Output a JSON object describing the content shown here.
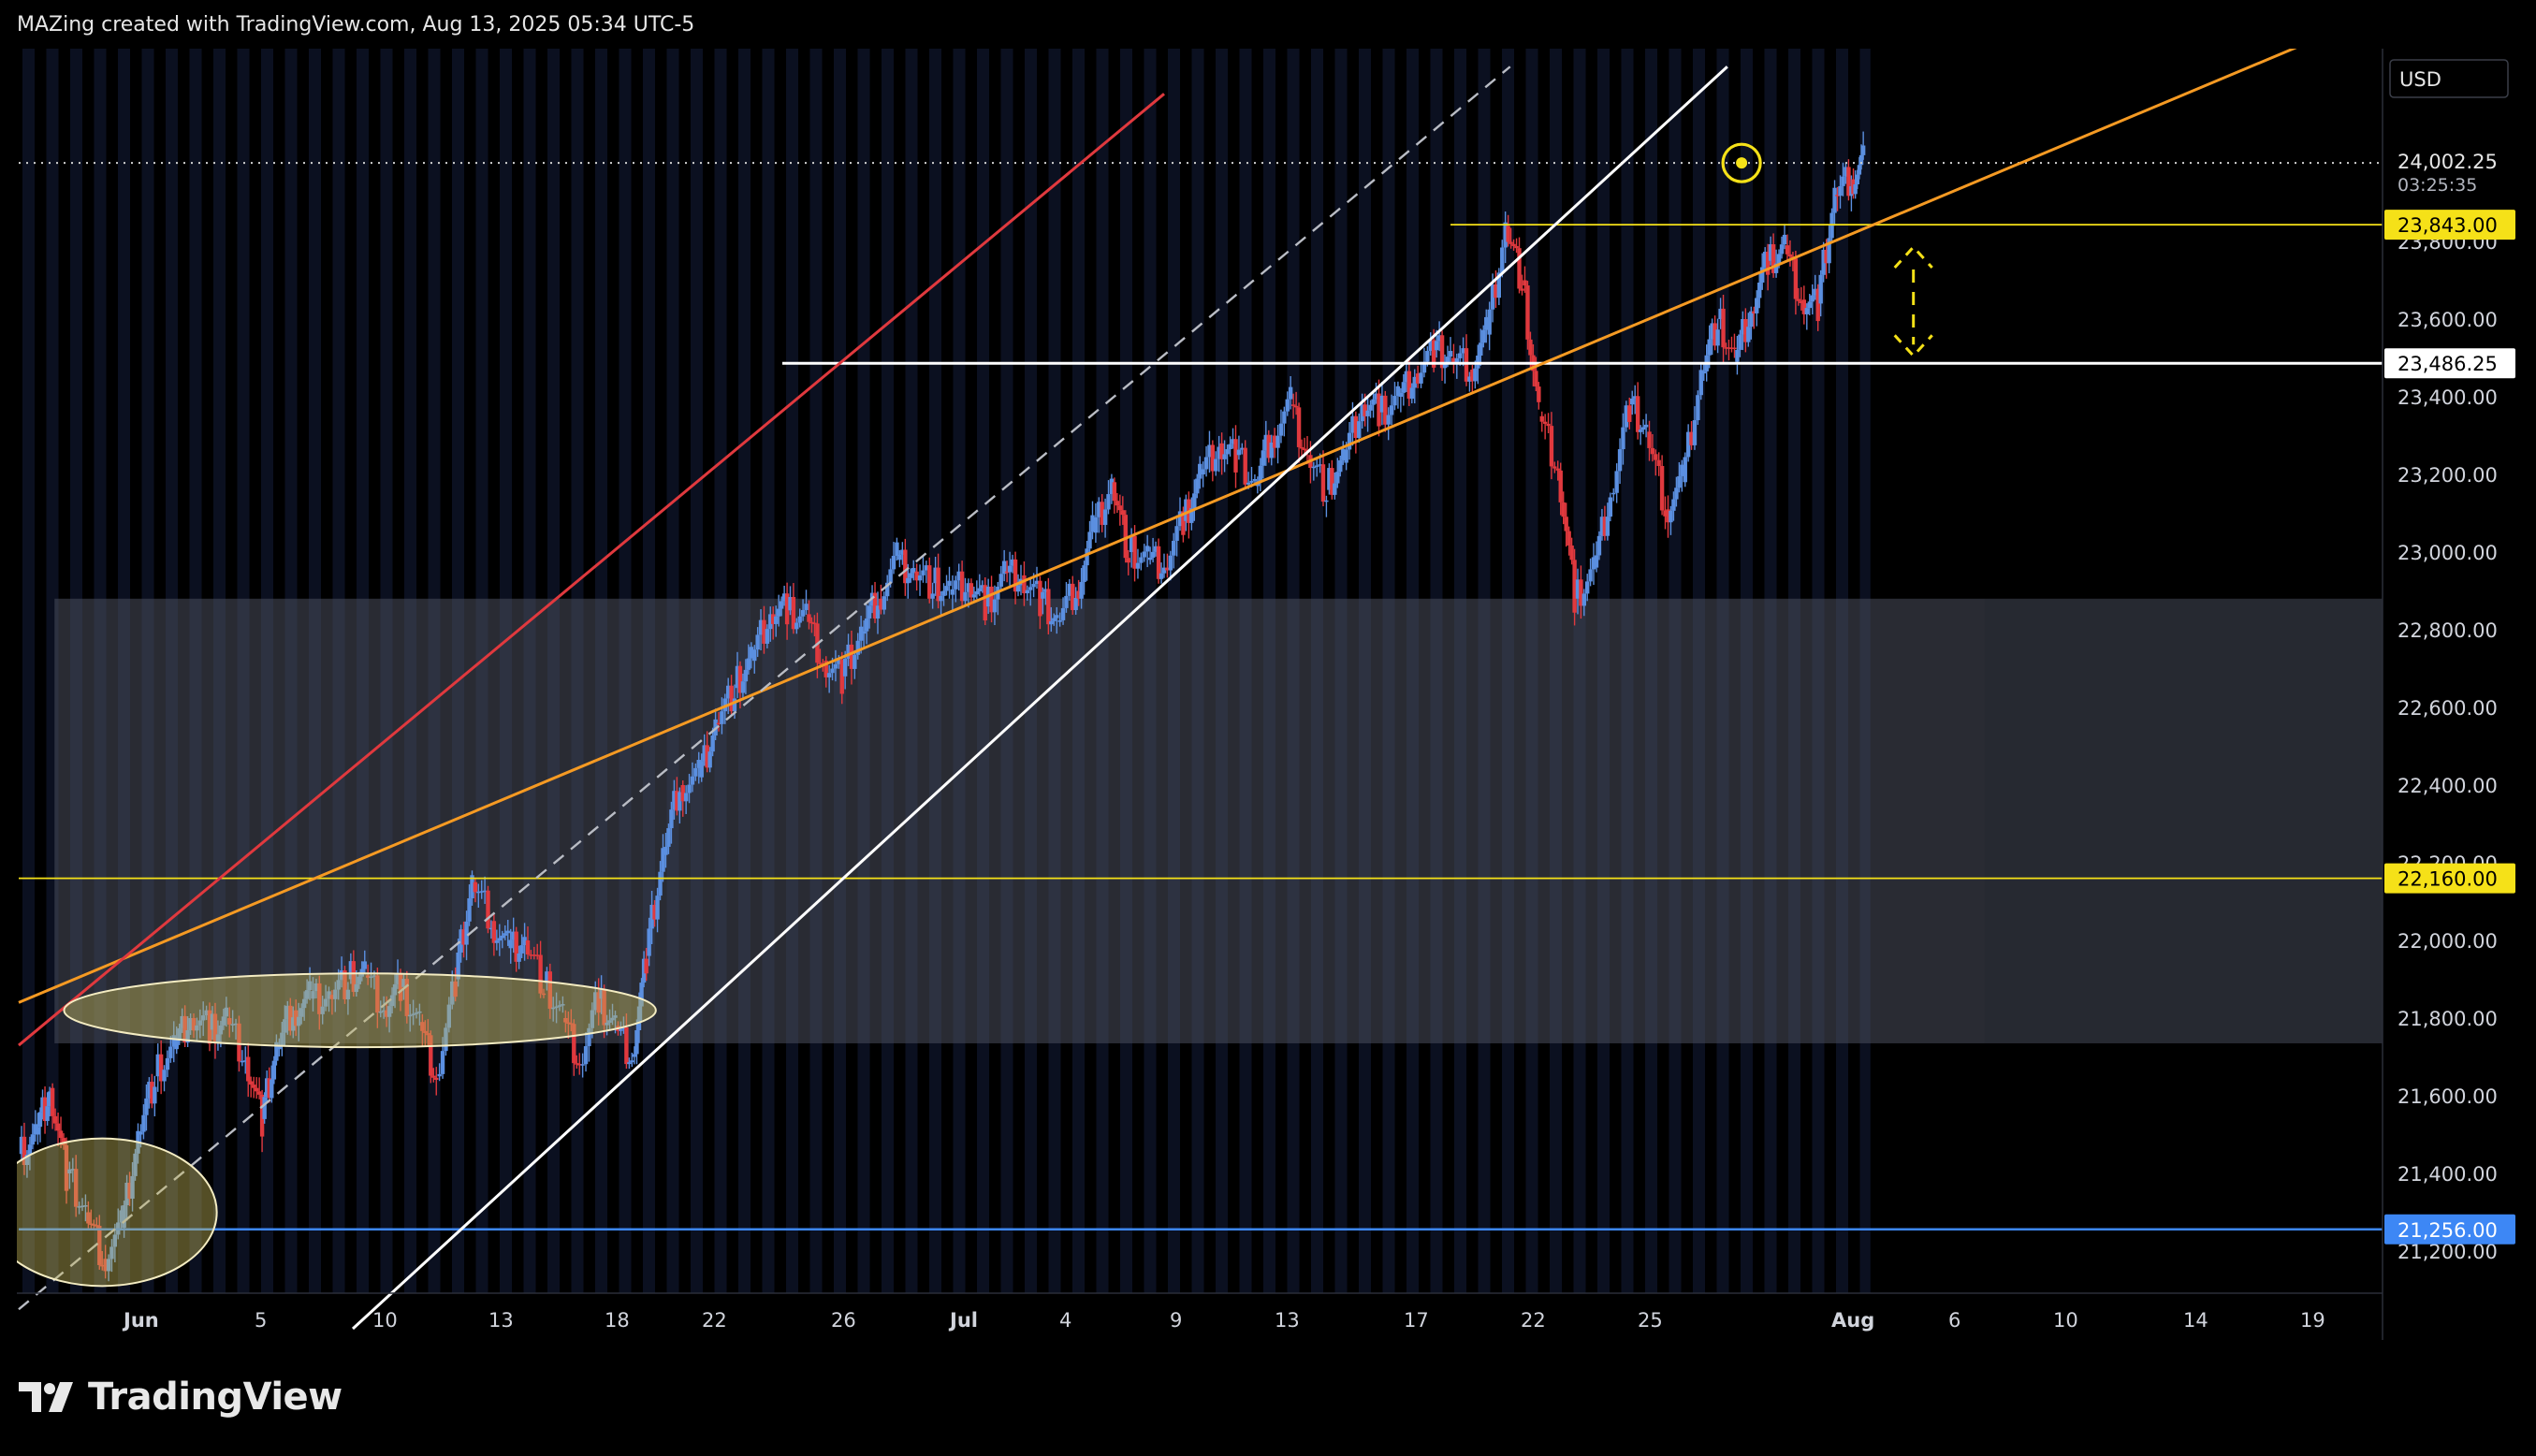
{
  "header": {
    "attribution": "MAZing created with TradingView.com, Aug 13, 2025 05:34 UTC-5"
  },
  "brand": {
    "name": "TradingView",
    "logo_icon": "tradingview-logo-icon"
  },
  "colors": {
    "background": "#000000",
    "up": "#5b8fe0",
    "down": "#e0393e",
    "yellow": "#f5e118",
    "orange": "#f59a23",
    "red_line": "#e0393e",
    "white_line": "#ffffff",
    "blue_line": "#3d87f5",
    "zone": "#4a4f5c"
  },
  "chart_data": {
    "type": "candlestick",
    "symbol_currency": "USD",
    "y_ticks": [
      "21,200.00",
      "21,400.00",
      "21,600.00",
      "21,800.00",
      "22,000.00",
      "22,200.00",
      "22,400.00",
      "22,600.00",
      "22,800.00",
      "23,000.00",
      "23,200.00",
      "23,400.00",
      "23,600.00",
      "23,800.00"
    ],
    "y_tick_values": [
      21200,
      21400,
      21600,
      21800,
      22000,
      22200,
      22400,
      22600,
      22800,
      23000,
      23200,
      23400,
      23600,
      23800
    ],
    "x_ticks": [
      "Jun",
      "5",
      "10",
      "13",
      "18",
      "22",
      "26",
      "Jul",
      "4",
      "9",
      "13",
      "17",
      "22",
      "25",
      "Aug",
      "6",
      "10",
      "14",
      "19"
    ],
    "x_tick_bold": [
      "Jun",
      "Jul",
      "Aug"
    ],
    "ylim": [
      21000,
      24300
    ],
    "price_labels": [
      {
        "text": "24,002.25",
        "subtext": "03:25:35",
        "value": 24002.25,
        "style": "current"
      },
      {
        "text": "23,843.00",
        "value": 23843,
        "style": "yellow"
      },
      {
        "text": "23,486.25",
        "value": 23486.25,
        "style": "white"
      },
      {
        "text": "22,160.00",
        "value": 22160,
        "style": "yellow"
      },
      {
        "text": "21,256.00",
        "value": 21256,
        "style": "blue"
      }
    ],
    "horizontal_levels": [
      {
        "name": "current-price-dotted",
        "value": 24002.25,
        "start_day": 0,
        "end_day": 78,
        "style": "dotted"
      },
      {
        "name": "resistance-23843",
        "value": 23843,
        "start_day": 60,
        "end_day": 78,
        "style": "yellow"
      },
      {
        "name": "support-23486",
        "value": 23486.25,
        "start_day": 32,
        "end_day": 78,
        "style": "white-thick"
      },
      {
        "name": "level-22160",
        "value": 22160,
        "start_day": 0,
        "end_day": 78,
        "style": "yellow"
      },
      {
        "name": "level-21256",
        "value": 21256,
        "start_day": 0,
        "end_day": 78,
        "style": "blue"
      }
    ],
    "trend_lines": [
      {
        "name": "orange-trendline",
        "p1": [
          0,
          21840
        ],
        "p2": [
          78,
          23850
        ],
        "color": "orange"
      },
      {
        "name": "red-trendline",
        "p1": [
          0,
          21730
        ],
        "p2": [
          48,
          24180
        ],
        "color": "red"
      },
      {
        "name": "white-trendline",
        "p1": [
          14,
          21000
        ],
        "p2": [
          71.6,
          24250
        ],
        "color": "white"
      },
      {
        "name": "dashed-trendline",
        "p1": [
          0,
          21050
        ],
        "p2": [
          62.5,
          24250
        ],
        "color": "dashed"
      }
    ],
    "zone": {
      "start_day": 1.5,
      "end_day": 78,
      "low": 21735,
      "high": 22880
    },
    "zone_clip_day": 71,
    "ellipses": [
      {
        "name": "consolidation-ellipse-june",
        "cx_day": 14.3,
        "cy": 21820,
        "rx_day": 12.4,
        "ry": 95
      },
      {
        "name": "base-ellipse-late-may",
        "cx_day": 3.5,
        "cy": 21300,
        "rx_day": 4.8,
        "ry": 190
      }
    ],
    "marker_circle": {
      "day": 72.2,
      "value": 24002
    },
    "projection_arrow": {
      "day": 79.4,
      "from": 23486,
      "to": 23800
    },
    "candles_daily_close": [
      [
        0,
        21450
      ],
      [
        0.7,
        21500
      ],
      [
        1.3,
        21620
      ],
      [
        2,
        21400
      ],
      [
        2.8,
        21300
      ],
      [
        3.5,
        21180
      ],
      [
        4.3,
        21260
      ],
      [
        5,
        21500
      ],
      [
        5.7,
        21650
      ],
      [
        6.5,
        21720
      ],
      [
        7.2,
        21800
      ],
      [
        8,
        21770
      ],
      [
        8.7,
        21800
      ],
      [
        9.5,
        21700
      ],
      [
        10.2,
        21540
      ],
      [
        10.8,
        21720
      ],
      [
        11.5,
        21820
      ],
      [
        12.2,
        21850
      ],
      [
        13,
        21860
      ],
      [
        13.8,
        21900
      ],
      [
        14.5,
        21910
      ],
      [
        15.3,
        21820
      ],
      [
        16,
        21880
      ],
      [
        16.8,
        21790
      ],
      [
        17.5,
        21650
      ],
      [
        18.3,
        21900
      ],
      [
        19,
        22150
      ],
      [
        19.8,
        22050
      ],
      [
        20.5,
        21980
      ],
      [
        21.2,
        22000
      ],
      [
        22,
        21890
      ],
      [
        22.8,
        21800
      ],
      [
        23.5,
        21680
      ],
      [
        24.3,
        21850
      ],
      [
        25,
        21780
      ],
      [
        25.7,
        21700
      ],
      [
        26.3,
        21960
      ],
      [
        27,
        22220
      ],
      [
        27.7,
        22400
      ],
      [
        28.5,
        22420
      ],
      [
        29.2,
        22560
      ],
      [
        30,
        22650
      ],
      [
        30.7,
        22720
      ],
      [
        31.5,
        22840
      ],
      [
        32.2,
        22850
      ],
      [
        33,
        22840
      ],
      [
        33.7,
        22720
      ],
      [
        34.5,
        22680
      ],
      [
        35.3,
        22790
      ],
      [
        36,
        22880
      ],
      [
        36.8,
        22980
      ],
      [
        37.5,
        22950
      ],
      [
        38.3,
        22920
      ],
      [
        39,
        22890
      ],
      [
        39.8,
        22920
      ],
      [
        40.5,
        22860
      ],
      [
        41.3,
        22950
      ],
      [
        42,
        22940
      ],
      [
        42.8,
        22880
      ],
      [
        43.5,
        22820
      ],
      [
        44.3,
        22900
      ],
      [
        45,
        23050
      ],
      [
        45.8,
        23180
      ],
      [
        46.5,
        23000
      ],
      [
        47.3,
        22980
      ],
      [
        48,
        22960
      ],
      [
        48.8,
        23080
      ],
      [
        49.5,
        23200
      ],
      [
        50.3,
        23280
      ],
      [
        51,
        23250
      ],
      [
        51.8,
        23170
      ],
      [
        52.5,
        23300
      ],
      [
        53.3,
        23380
      ],
      [
        54,
        23250
      ],
      [
        54.8,
        23160
      ],
      [
        55.5,
        23230
      ],
      [
        56.3,
        23380
      ],
      [
        57,
        23360
      ],
      [
        57.8,
        23400
      ],
      [
        58.5,
        23460
      ],
      [
        59.3,
        23520
      ],
      [
        60,
        23500
      ],
      [
        60.8,
        23470
      ],
      [
        61.5,
        23560
      ],
      [
        62.3,
        23840
      ],
      [
        63,
        23700
      ],
      [
        63.7,
        23350
      ],
      [
        64.5,
        23210
      ],
      [
        65.2,
        22880
      ],
      [
        66,
        22960
      ],
      [
        66.7,
        23150
      ],
      [
        67.5,
        23380
      ],
      [
        68.2,
        23310
      ],
      [
        69,
        23110
      ],
      [
        69.7,
        23180
      ],
      [
        70.5,
        23460
      ],
      [
        71.2,
        23600
      ],
      [
        71.9,
        23490
      ],
      [
        72.6,
        23620
      ],
      [
        73.3,
        23750
      ],
      [
        74,
        23790
      ],
      [
        74.7,
        23650
      ],
      [
        75.4,
        23640
      ],
      [
        76.1,
        23920
      ],
      [
        76.8,
        23960
      ],
      [
        77.3,
        24002
      ]
    ]
  }
}
